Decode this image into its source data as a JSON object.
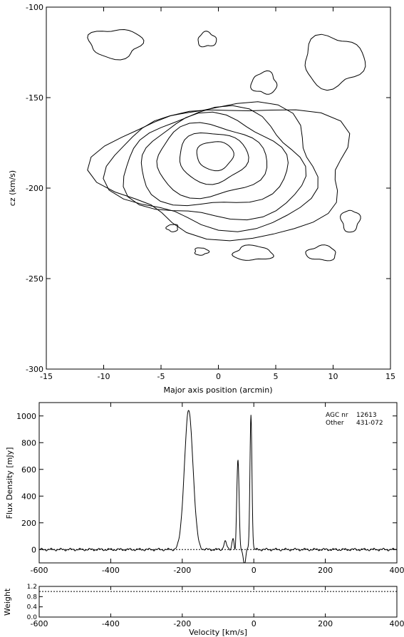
{
  "chart_data": [
    {
      "type": "contour",
      "xlabel": "Major axis position (arcmin)",
      "ylabel": "cz (km/s)",
      "xlim": [
        -15,
        15
      ],
      "ylim": [
        -300,
        -100
      ],
      "x_ticks": [
        -15,
        -10,
        -5,
        0,
        5,
        10,
        15
      ],
      "y_ticks": [
        -300,
        -250,
        -200,
        -150,
        -100
      ],
      "concentric_levels": [
        {
          "xr": 1.6,
          "yr": 8,
          "cx": -0.3,
          "cy": -182
        },
        {
          "xr": 3.0,
          "yr": 14,
          "cx": -0.5,
          "cy": -183
        },
        {
          "xr": 4.8,
          "yr": 20,
          "cx": -0.7,
          "cy": -185
        },
        {
          "xr": 6.4,
          "yr": 25,
          "cx": -0.5,
          "cy": -186
        },
        {
          "xr": 7.8,
          "yr": 30,
          "cx": -0.3,
          "cy": -188
        },
        {
          "xr": 9.0,
          "yr": 34,
          "cx": 0.0,
          "cy": -188
        },
        {
          "xr": 10.8,
          "yr": 36,
          "cx": 1.0,
          "cy": -190
        }
      ],
      "islands": [
        {
          "cx": -9.0,
          "cy": -120,
          "xr": 2.3,
          "yr": 8
        },
        {
          "cx": 10.0,
          "cy": -130,
          "xr": 2.6,
          "yr": 14
        },
        {
          "cx": -1.0,
          "cy": -118,
          "xr": 0.8,
          "yr": 4
        },
        {
          "cx": 4.0,
          "cy": -142,
          "xr": 1.1,
          "yr": 6
        },
        {
          "cx": -4.0,
          "cy": -222,
          "xr": 0.5,
          "yr": 2
        },
        {
          "cx": 11.5,
          "cy": -218,
          "xr": 0.8,
          "yr": 6
        },
        {
          "cx": -1.5,
          "cy": -235,
          "xr": 0.6,
          "yr": 2
        },
        {
          "cx": 3.0,
          "cy": -236,
          "xr": 1.7,
          "yr": 4
        },
        {
          "cx": 9.0,
          "cy": -236,
          "xr": 1.3,
          "yr": 4
        }
      ]
    },
    {
      "type": "line",
      "ylabel": "Flux Density [mJy]",
      "xlim": [
        -600,
        400
      ],
      "ylim": [
        -100,
        1100
      ],
      "x_ticks": [
        -600,
        -400,
        -200,
        0,
        200,
        400
      ],
      "y_ticks": [
        0,
        200,
        400,
        600,
        800,
        1000
      ],
      "peaks": [
        {
          "center": -182,
          "sigma": 12,
          "height": 1040
        },
        {
          "center": -44,
          "sigma": 3.5,
          "height": 700
        },
        {
          "center": -8,
          "sigma": 2.8,
          "height": 1010
        },
        {
          "center": -80,
          "sigma": 4,
          "height": 60
        },
        {
          "center": -58,
          "sigma": 3,
          "height": 90
        }
      ],
      "dips": [
        {
          "center": -40,
          "sigma": 3,
          "depth": -90
        },
        {
          "center": -26,
          "sigma": 3,
          "depth": -120
        },
        {
          "center": -52,
          "sigma": 2,
          "depth": -60
        }
      ],
      "zero_line_dotted": true,
      "annotation": {
        "agc_label": "AGC nr",
        "agc_value": "12613",
        "other_label": "Other",
        "other_value": "431-072"
      }
    },
    {
      "type": "line",
      "xlabel": "Velocity [km/s]",
      "ylabel": "Weight",
      "xlim": [
        -600,
        400
      ],
      "ylim": [
        0,
        1.2
      ],
      "x_ticks": [
        -600,
        -400,
        -200,
        0,
        200,
        400
      ],
      "y_ticks": [
        0.0,
        0.4,
        0.8,
        1.2
      ],
      "y_tick_labels": [
        "0.0",
        "0.4",
        "0.8",
        "1.2"
      ],
      "weight_value": 1.0
    }
  ]
}
